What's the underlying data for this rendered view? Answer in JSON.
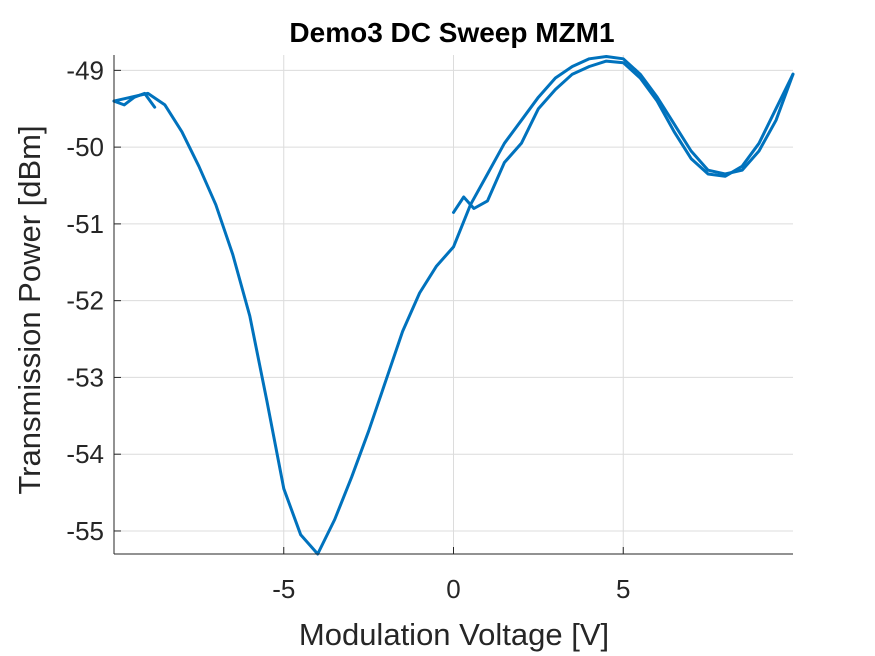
{
  "chart_data": {
    "type": "line",
    "title": "Demo3 DC Sweep MZM1",
    "xlabel": "Modulation Voltage [V]",
    "ylabel": "Transmission Power [dBm]",
    "xlim": [
      -10,
      10
    ],
    "ylim": [
      -55.3,
      -48.8
    ],
    "xticks": [
      -5,
      0,
      5
    ],
    "xtick_labels": [
      "-5",
      "0",
      "5"
    ],
    "yticks": [
      -55,
      -54,
      -53,
      -52,
      -51,
      -50,
      -49
    ],
    "ytick_labels": [
      "-55",
      "-54",
      "-53",
      "-52",
      "-51",
      "-50",
      "-49"
    ],
    "grid": true,
    "color": "#0072bd",
    "series": [
      {
        "x": [
          0.0,
          0.3,
          0.6,
          1.0,
          1.5,
          2.0,
          2.5,
          3.0,
          3.5,
          4.0,
          4.5,
          5.0,
          5.5,
          6.0,
          6.5,
          7.0,
          7.5,
          8.0,
          8.5,
          9.0,
          9.5,
          10.0
        ],
        "y": [
          -50.85,
          -50.65,
          -50.8,
          -50.7,
          -50.2,
          -49.95,
          -49.5,
          -49.25,
          -49.05,
          -48.95,
          -48.88,
          -48.9,
          -49.1,
          -49.4,
          -49.8,
          -50.15,
          -50.35,
          -50.38,
          -50.25,
          -49.95,
          -49.5,
          -49.05
        ]
      },
      {
        "x": [
          10.0,
          9.5,
          9.0,
          8.5,
          8.0,
          7.5,
          7.0,
          6.5,
          6.0,
          5.5,
          5.0,
          4.5,
          4.0,
          3.5,
          3.0,
          2.5,
          2.0,
          1.5,
          1.0,
          0.5,
          0.0,
          -0.5,
          -1.0,
          -1.5,
          -2.0,
          -2.5,
          -3.0,
          -3.5,
          -4.0,
          -4.5,
          -5.0,
          -5.5,
          -6.0,
          -6.5,
          -7.0,
          -7.5,
          -8.0,
          -8.5,
          -9.0,
          -9.5,
          -10.0
        ],
        "y": [
          -49.05,
          -49.65,
          -50.05,
          -50.3,
          -50.35,
          -50.3,
          -50.05,
          -49.7,
          -49.35,
          -49.05,
          -48.85,
          -48.82,
          -48.85,
          -48.95,
          -49.1,
          -49.35,
          -49.65,
          -49.95,
          -50.35,
          -50.75,
          -51.3,
          -51.55,
          -51.9,
          -52.4,
          -53.05,
          -53.7,
          -54.3,
          -54.85,
          -55.3,
          -55.05,
          -54.45,
          -53.3,
          -52.2,
          -51.4,
          -50.75,
          -50.25,
          -49.8,
          -49.45,
          -49.3,
          -49.35,
          -49.4
        ]
      },
      {
        "x": [
          -10.0,
          -9.7,
          -9.4,
          -9.1,
          -8.8
        ],
        "y": [
          -49.4,
          -49.45,
          -49.35,
          -49.3,
          -49.48
        ]
      }
    ]
  }
}
